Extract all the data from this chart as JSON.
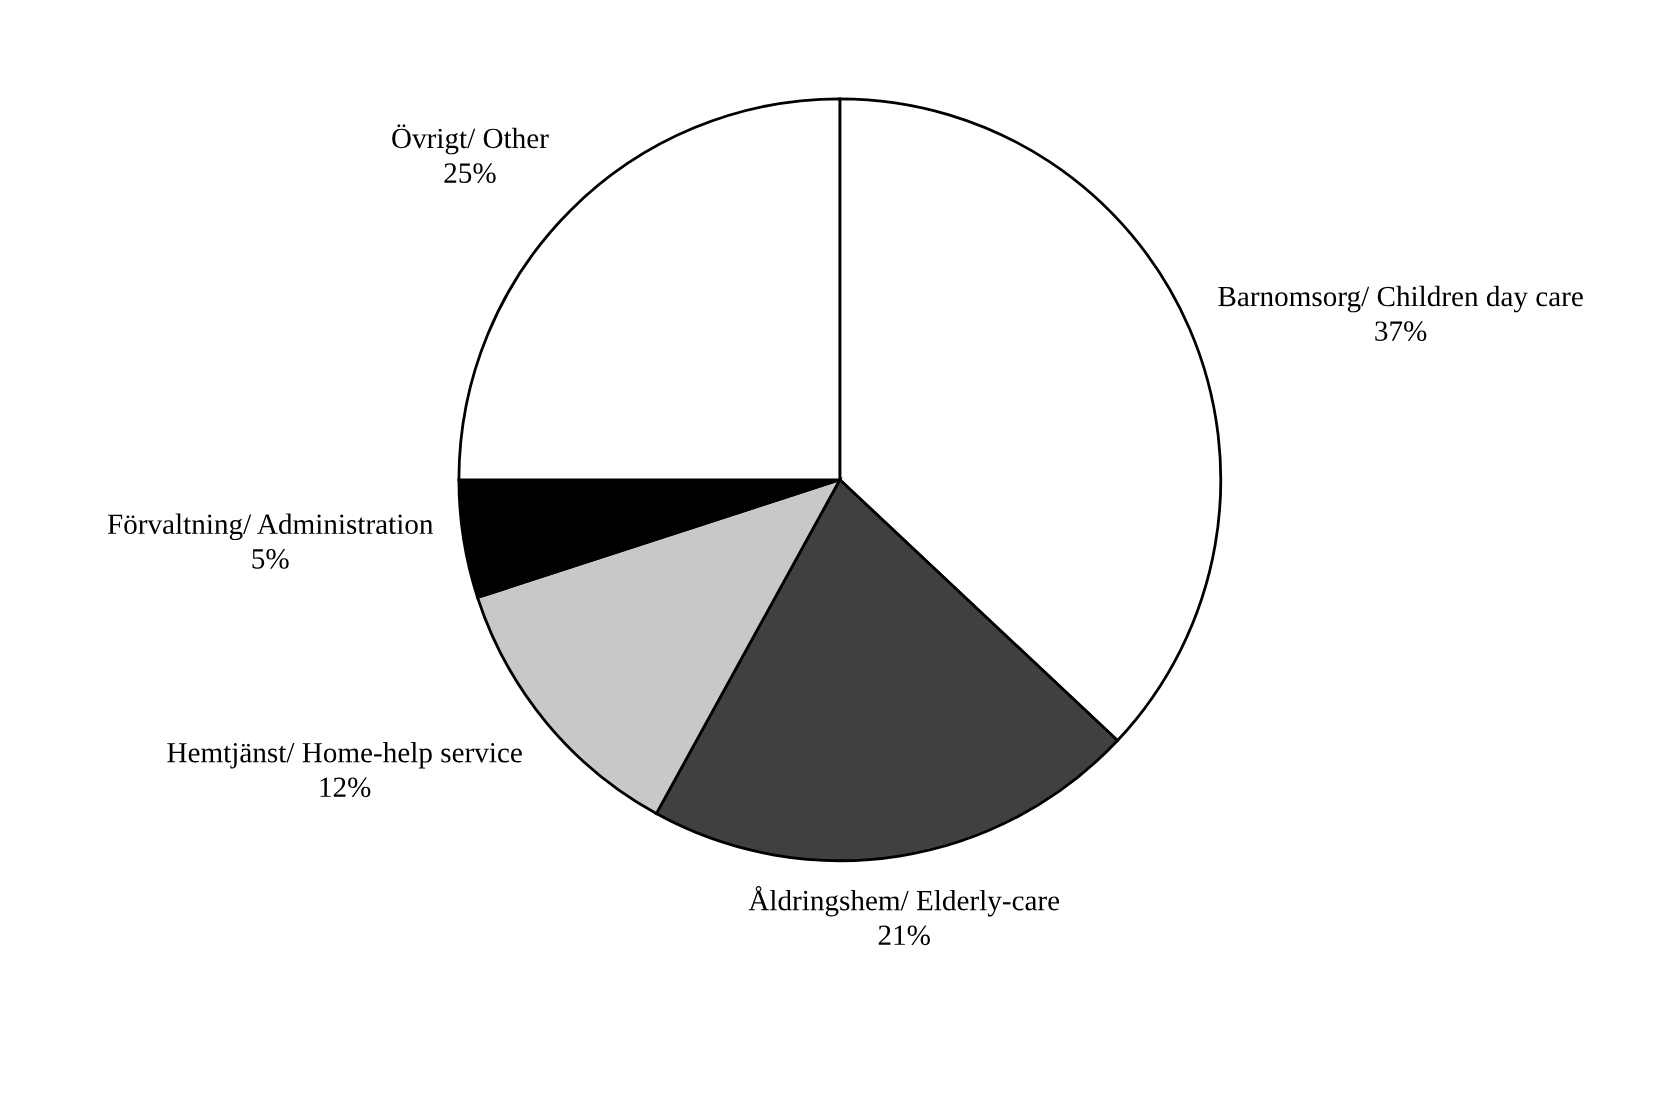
{
  "chart_data": {
    "type": "pie",
    "categories": [
      "Barnomsorg/ Children day care",
      "Åldringshem/ Elderly-care",
      "Hemtjänst/ Home-help service",
      "Förvaltning/ Administration",
      "Övrigt/ Other"
    ],
    "values": [
      37,
      21,
      12,
      5,
      25
    ],
    "value_labels": [
      "37%",
      "21%",
      "12%",
      "5%",
      "25%"
    ],
    "colors": [
      "#ffffff",
      "#404040",
      "#c8c8c8",
      "#000000",
      "#ffffff"
    ],
    "legend": false
  }
}
